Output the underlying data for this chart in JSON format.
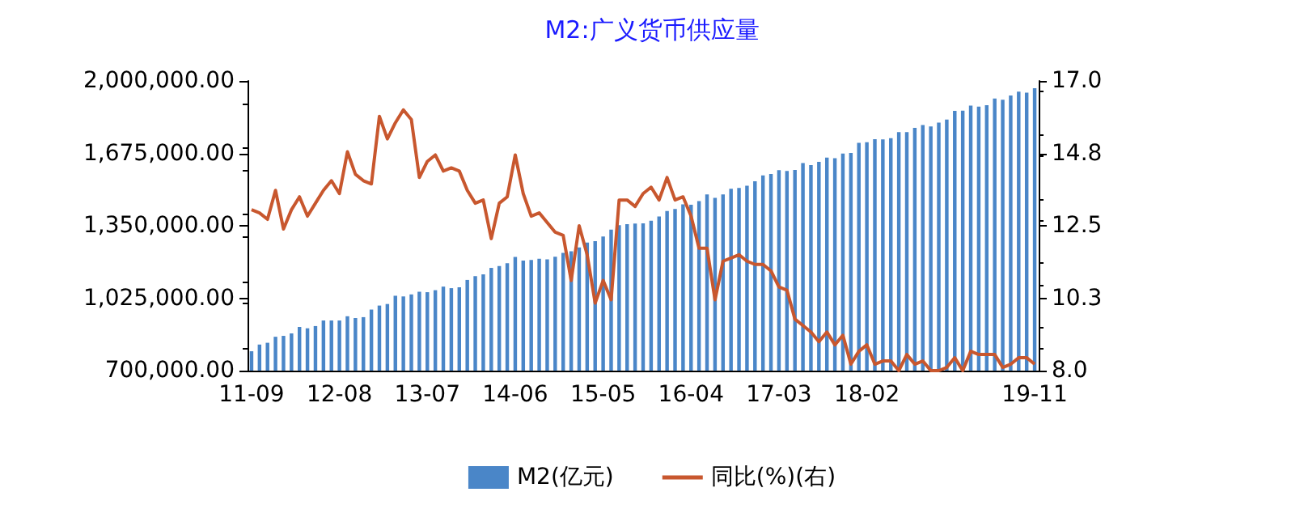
{
  "chart_data": {
    "type": "bar",
    "title": "M2:广义货币供应量",
    "categories": [
      "11-09",
      null,
      null,
      null,
      null,
      null,
      null,
      null,
      null,
      null,
      null,
      "12-08",
      null,
      null,
      null,
      null,
      null,
      null,
      null,
      null,
      null,
      null,
      "13-07",
      null,
      null,
      null,
      null,
      null,
      null,
      null,
      null,
      null,
      null,
      "14-06",
      null,
      null,
      null,
      null,
      null,
      null,
      null,
      null,
      null,
      null,
      "15-05",
      null,
      null,
      null,
      null,
      null,
      null,
      null,
      null,
      null,
      null,
      "16-04",
      null,
      null,
      null,
      null,
      null,
      null,
      null,
      null,
      null,
      null,
      "17-03",
      null,
      null,
      null,
      null,
      null,
      null,
      null,
      null,
      null,
      null,
      "18-02",
      null,
      null,
      null,
      null,
      null,
      null,
      null,
      null,
      null,
      null,
      null,
      null,
      null,
      null,
      null,
      null,
      null,
      null,
      null,
      null,
      "19-11"
    ],
    "series": [
      {
        "name": "M2(亿元)",
        "color": "#4a86c8",
        "values": [
          787000,
          817000,
          825000,
          852000,
          856000,
          867000,
          896000,
          890000,
          900000,
          925000,
          925000,
          925000,
          944000,
          936000,
          940000,
          974000,
          992000,
          999000,
          1036000,
          1033000,
          1042000,
          1054000,
          1052000,
          1061000,
          1077000,
          1070000,
          1074000,
          1107000,
          1124000,
          1132000,
          1161000,
          1169000,
          1182000,
          1210000,
          1194000,
          1197000,
          1202000,
          1199000,
          1211000,
          1228000,
          1236000,
          1253000,
          1275000,
          1281000,
          1302000,
          1333000,
          1353000,
          1357000,
          1360000,
          1361000,
          1373000,
          1392000,
          1416000,
          1425000,
          1446000,
          1444000,
          1461000,
          1491000,
          1475000,
          1491000,
          1516000,
          1520000,
          1530000,
          1550000,
          1576000,
          1582000,
          1600000,
          1596000,
          1601000,
          1631000,
          1622000,
          1637000,
          1656000,
          1653000,
          1674000,
          1677000,
          1722000,
          1725000,
          1739000,
          1738000,
          1743000,
          1770000,
          1770000,
          1789000,
          1802000,
          1796000,
          1813000,
          1827000,
          1866000,
          1867000,
          1889000,
          1885000,
          1891000,
          1921000,
          1916000,
          1935000,
          1952000,
          1947000,
          1967000
        ]
      },
      {
        "name": "同比(%)(右)",
        "type": "line",
        "axis": "y2",
        "color": "#c8572e",
        "values": [
          13.0,
          12.9,
          12.7,
          13.6,
          12.4,
          13.0,
          13.4,
          12.8,
          13.2,
          13.6,
          13.9,
          13.5,
          14.8,
          14.1,
          13.9,
          13.8,
          15.9,
          15.2,
          15.7,
          16.1,
          15.8,
          14.0,
          14.5,
          14.7,
          14.2,
          14.3,
          14.2,
          13.6,
          13.2,
          13.3,
          12.1,
          13.2,
          13.4,
          14.7,
          13.5,
          12.8,
          12.9,
          12.6,
          12.3,
          12.2,
          10.8,
          12.5,
          11.6,
          10.1,
          10.8,
          10.2,
          13.3,
          13.3,
          13.1,
          13.5,
          13.7,
          13.3,
          14.0,
          13.3,
          13.4,
          12.8,
          11.8,
          11.8,
          10.2,
          11.4,
          11.5,
          11.6,
          11.4,
          11.3,
          11.3,
          11.1,
          10.6,
          10.5,
          9.6,
          9.4,
          9.2,
          8.9,
          9.2,
          8.8,
          9.1,
          8.2,
          8.6,
          8.8,
          8.2,
          8.3,
          8.3,
          8.0,
          8.5,
          8.2,
          8.3,
          8.0,
          8.0,
          8.1,
          8.4,
          8.0,
          8.6,
          8.5,
          8.5,
          8.5,
          8.1,
          8.2,
          8.4,
          8.4,
          8.2
        ]
      }
    ],
    "ylim": [
      700000,
      2000000
    ],
    "yticks": [
      {
        "value": 700000,
        "label": "700,000.00"
      },
      {
        "value": 1025000,
        "label": "1,025,000.00"
      },
      {
        "value": 1350000,
        "label": "1,350,000.00"
      },
      {
        "value": 1675000,
        "label": "1,675,000.00"
      },
      {
        "value": 2000000,
        "label": "2,000,000.00"
      }
    ],
    "y2lim": [
      8,
      17
    ],
    "y2ticks": [
      {
        "value": 8,
        "label": "8.0"
      },
      {
        "value": 10.25,
        "label": "10.3"
      },
      {
        "value": 12.5,
        "label": "12.5"
      },
      {
        "value": 14.75,
        "label": "14.8"
      },
      {
        "value": 17,
        "label": "17.0"
      }
    ],
    "legend": "bottom",
    "grid": false,
    "marker": "none"
  }
}
